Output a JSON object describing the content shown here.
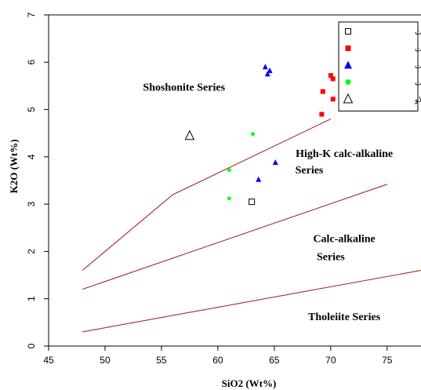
{
  "chart_data": {
    "type": "scatter",
    "xlabel": "SiO2 (Wt%)",
    "ylabel": "K2O (Wt%)",
    "xlim": [
      45,
      78
    ],
    "ylim": [
      0,
      7
    ],
    "xticks": [
      45,
      50,
      55,
      60,
      65,
      70,
      75
    ],
    "yticks": [
      0,
      1,
      2,
      3,
      4,
      5,
      6,
      7
    ],
    "grid": false,
    "legend_position": "top-right",
    "series_names": [
      "کوارتزمونزودیوریت",
      "گرانیت",
      "کوارتزمونزونیت",
      "مونزودیوریت",
      "انکلاو"
    ],
    "series": [
      {
        "name": "کوارتزمونزودیوریت",
        "marker": "open-square",
        "color": "#000000",
        "points": [
          {
            "x": 63.0,
            "y": 3.05
          }
        ]
      },
      {
        "name": "گرانیت",
        "marker": "filled-square",
        "color": "#ff0000",
        "points": [
          {
            "x": 70.0,
            "y": 5.72
          },
          {
            "x": 70.2,
            "y": 5.65
          },
          {
            "x": 69.3,
            "y": 5.38
          },
          {
            "x": 70.2,
            "y": 5.22
          },
          {
            "x": 69.2,
            "y": 4.9
          }
        ]
      },
      {
        "name": "کوارتزمونزونیت",
        "marker": "filled-triangle",
        "color": "#0000ff",
        "points": [
          {
            "x": 64.2,
            "y": 5.9
          },
          {
            "x": 64.6,
            "y": 5.82
          },
          {
            "x": 64.4,
            "y": 5.75
          },
          {
            "x": 65.1,
            "y": 3.88
          },
          {
            "x": 63.6,
            "y": 3.52
          }
        ]
      },
      {
        "name": "مونزودیوریت",
        "marker": "filled-diamond",
        "color": "#00ff00",
        "points": [
          {
            "x": 63.1,
            "y": 4.48
          },
          {
            "x": 61.0,
            "y": 3.72
          },
          {
            "x": 61.0,
            "y": 3.12
          }
        ]
      },
      {
        "name": "انکلاو",
        "marker": "open-triangle",
        "color": "#000000",
        "points": [
          {
            "x": 57.5,
            "y": 4.45
          }
        ]
      }
    ],
    "boundary_lines": [
      {
        "points": [
          [
            48,
            1.6
          ],
          [
            56,
            3.2
          ],
          [
            70,
            4.8
          ]
        ],
        "color": "#a52a2a"
      },
      {
        "points": [
          [
            48,
            1.2
          ],
          [
            75,
            3.42
          ]
        ],
        "color": "#a52a2a"
      },
      {
        "points": [
          [
            48,
            0.3
          ],
          [
            78,
            1.6
          ]
        ],
        "color": "#a52a2a"
      }
    ],
    "field_labels": [
      {
        "text": "Shoshonite Series",
        "x": 57.0,
        "y": 5.4
      },
      {
        "text": "High-K calc-alkaline",
        "x": 71.2,
        "y": 4.0
      },
      {
        "text": "Series",
        "x": 68.1,
        "y": 3.65
      },
      {
        "text": "Calc-alkaline",
        "x": 71.2,
        "y": 2.2
      },
      {
        "text": "Series",
        "x": 70.0,
        "y": 1.82
      },
      {
        "text": "Tholeiite Series",
        "x": 71.2,
        "y": 0.55
      }
    ]
  }
}
